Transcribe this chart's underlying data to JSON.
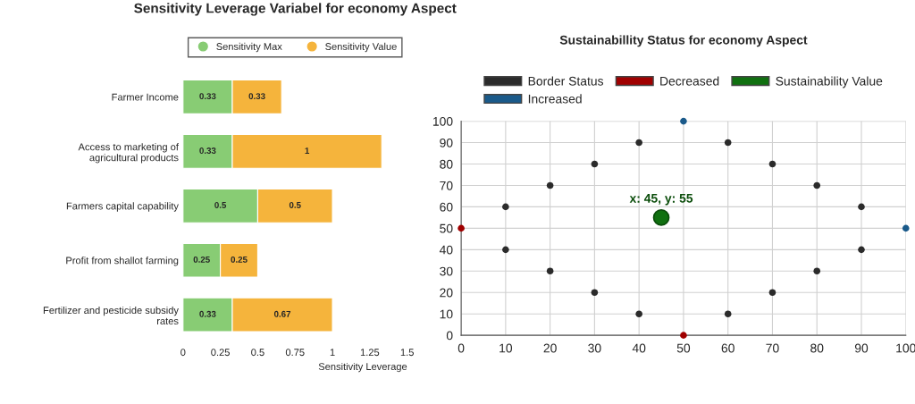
{
  "chart_data": [
    {
      "type": "bar",
      "orientation": "horizontal",
      "stacked": true,
      "title": "Sensitivity Leverage Variabel for economy Aspect",
      "xlabel": "Sensitivity Leverage",
      "categories": [
        "Farmer Income",
        "Access to marketing of\nagricultural products",
        "Farmers capital capability",
        "Profit from shallot farming",
        "Fertilizer and pesticide subsidy\nrates"
      ],
      "series": [
        {
          "name": "Sensitivity Max",
          "color": "#88cc74",
          "values": [
            0.33,
            0.33,
            0.5,
            0.25,
            0.33
          ]
        },
        {
          "name": "Sensitivity Value",
          "color": "#f5b43c",
          "values": [
            0.33,
            1,
            0.5,
            0.25,
            0.67
          ]
        }
      ],
      "xlim": [
        0,
        1.5
      ],
      "xticks": [
        0,
        0.25,
        0.5,
        0.75,
        1,
        1.25,
        1.5
      ],
      "data_labels": true,
      "legend": "top",
      "grid": false
    },
    {
      "type": "scatter",
      "title": "Sustainabillity Status for economy Aspect",
      "series": [
        {
          "name": "Border Status",
          "color": "#2b2b2b",
          "x": [
            10,
            20,
            30,
            40,
            60,
            70,
            80,
            90,
            90,
            80,
            70,
            60,
            40,
            30,
            20,
            10
          ],
          "values": [
            60,
            70,
            80,
            90,
            90,
            80,
            70,
            60,
            40,
            30,
            20,
            10,
            10,
            20,
            30,
            40
          ]
        },
        {
          "name": "Increased",
          "color": "#1a5a8a",
          "x": [
            50,
            100
          ],
          "values": [
            100,
            50
          ]
        },
        {
          "name": "Decreased",
          "color": "#a00000",
          "x": [
            0,
            50
          ],
          "values": [
            50,
            0
          ]
        },
        {
          "name": "Sustainability Value",
          "color": "#107010",
          "x": [
            45
          ],
          "values": [
            55
          ]
        }
      ],
      "annotations": [
        {
          "text": "x: 45, y: 55",
          "x": 45,
          "y": 55
        }
      ],
      "xlim": [
        0,
        100
      ],
      "ylim": [
        0,
        100
      ],
      "xticks": [
        0,
        10,
        20,
        30,
        40,
        50,
        60,
        70,
        80,
        90,
        100
      ],
      "yticks": [
        0,
        10,
        20,
        30,
        40,
        50,
        60,
        70,
        80,
        90,
        100
      ],
      "grid": true,
      "legend": "top",
      "marker": "circle"
    }
  ]
}
